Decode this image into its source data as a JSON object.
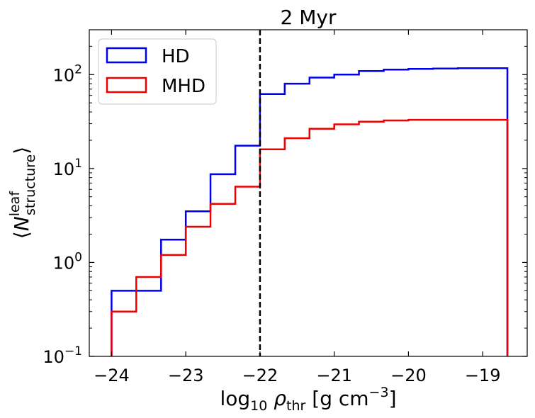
{
  "chart_data": {
    "type": "step-histogram",
    "title": "2 Myr",
    "xlabel": {
      "base": "log",
      "base_sub": "10",
      "symbol": "ρ",
      "symbol_sub": "thr",
      "units_open": "[g cm",
      "units_sup": "−3",
      "units_close": "]"
    },
    "ylabel": {
      "open": "⟨",
      "symbol": "N",
      "sup": "leaf",
      "sub": "structure",
      "close": "⟩"
    },
    "xlim": [
      -24.3,
      -18.4
    ],
    "ylim": [
      0.1,
      300
    ],
    "yscale": "log",
    "xticks": [
      -24,
      -23,
      -22,
      -21,
      -20,
      -19
    ],
    "xtick_labels": [
      "−24",
      "−23",
      "−22",
      "−21",
      "−20",
      "−19"
    ],
    "yticks": [
      {
        "value": 0.1,
        "base": "10",
        "exp": "−1"
      },
      {
        "value": 1,
        "base": "10",
        "exp": "0"
      },
      {
        "value": 10,
        "base": "10",
        "exp": "1"
      },
      {
        "value": 100,
        "base": "10",
        "exp": "2"
      }
    ],
    "bin_edges": [
      -24.0,
      -23.667,
      -23.333,
      -23.0,
      -22.667,
      -22.333,
      -22.0,
      -21.667,
      -21.333,
      -21.0,
      -20.667,
      -20.333,
      -20.0,
      -19.667,
      -19.333,
      -19.0,
      -18.667
    ],
    "vline": {
      "x": -22.0,
      "style": "dashed",
      "color": "#000000"
    },
    "legend": {
      "location": "upper-left"
    },
    "series": [
      {
        "name": "HD",
        "color": "#0000ee",
        "values": [
          0.5,
          0.5,
          1.75,
          3.5,
          8.7,
          17.5,
          62,
          80,
          93,
          100,
          109,
          113,
          115,
          116,
          117,
          117
        ]
      },
      {
        "name": "MHD",
        "color": "#ee0000",
        "values": [
          0.3,
          0.7,
          1.2,
          2.4,
          4.2,
          6.4,
          16,
          21,
          26.5,
          29.5,
          31.5,
          32.5,
          33,
          33,
          33,
          33
        ]
      }
    ]
  }
}
